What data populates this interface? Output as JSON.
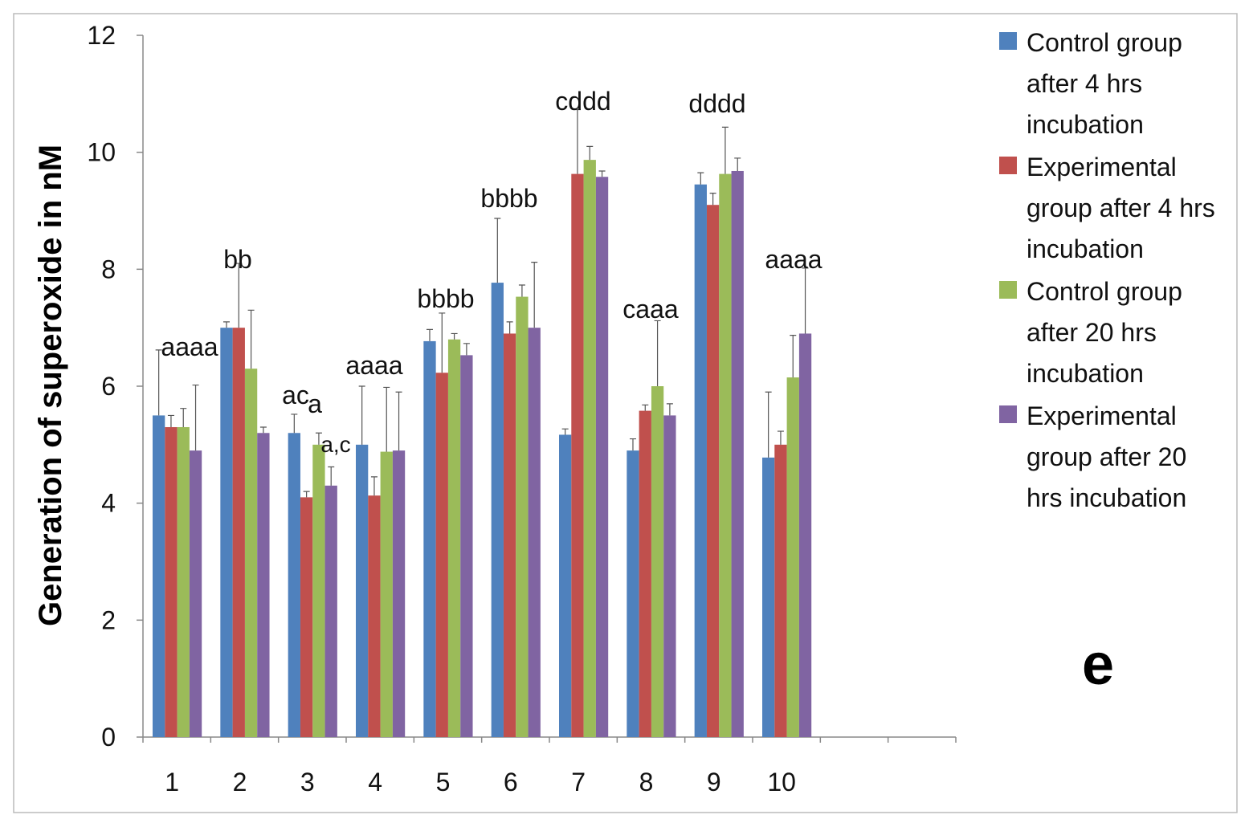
{
  "chart_data": {
    "type": "bar",
    "ylabel": "Generation of superoxide in nM",
    "panel_label": "e",
    "categories": [
      "1",
      "2",
      "3",
      "4",
      "5",
      "6",
      "7",
      "8",
      "9",
      "10",
      null,
      null
    ],
    "series": [
      {
        "name": "Control group after 4  hrs incubation",
        "color": "#4f81bd",
        "values": [
          5.5,
          7.0,
          5.2,
          5.0,
          6.77,
          7.77,
          5.17,
          4.9,
          9.45,
          4.78,
          null,
          null
        ],
        "errors": [
          1.12,
          0.1,
          0.32,
          1.0,
          0.2,
          1.1,
          0.1,
          0.2,
          0.2,
          1.12,
          null,
          null
        ]
      },
      {
        "name": "Experimental group after 4 hrs incubation",
        "color": "#c0504d",
        "values": [
          5.3,
          7.0,
          4.1,
          4.13,
          6.23,
          6.9,
          9.63,
          5.58,
          9.1,
          5.0,
          null,
          null
        ],
        "errors": [
          0.2,
          1.1,
          0.1,
          0.32,
          1.02,
          0.2,
          1.1,
          0.1,
          0.2,
          0.23,
          null,
          null
        ]
      },
      {
        "name": "Control group after 20 hrs incubation",
        "color": "#9bbb59",
        "values": [
          5.3,
          6.3,
          5.0,
          4.88,
          6.8,
          7.53,
          9.87,
          6.0,
          9.63,
          6.15,
          null,
          null
        ],
        "errors": [
          0.32,
          1.0,
          0.2,
          1.1,
          0.1,
          0.2,
          0.23,
          1.12,
          0.8,
          0.72,
          null,
          null
        ]
      },
      {
        "name": "Experimental group after 20 hrs incubation",
        "color": "#8064a2",
        "values": [
          4.9,
          5.2,
          4.3,
          4.9,
          6.53,
          7.0,
          9.58,
          5.5,
          9.68,
          6.9,
          null,
          null
        ],
        "errors": [
          1.12,
          0.1,
          0.32,
          1.0,
          0.2,
          1.12,
          0.1,
          0.2,
          0.22,
          1.12,
          null,
          null
        ]
      }
    ],
    "annotations": [
      "aaaa",
      "bb",
      "ac",
      "a",
      "a,c",
      "aaaa",
      "bbbb",
      "bbbb",
      "cddd",
      "caaa",
      "dddd",
      "aaaa"
    ],
    "ylim": [
      0,
      12
    ],
    "yticks": [
      0,
      2,
      4,
      6,
      8,
      10,
      12
    ],
    "legend": "right"
  }
}
